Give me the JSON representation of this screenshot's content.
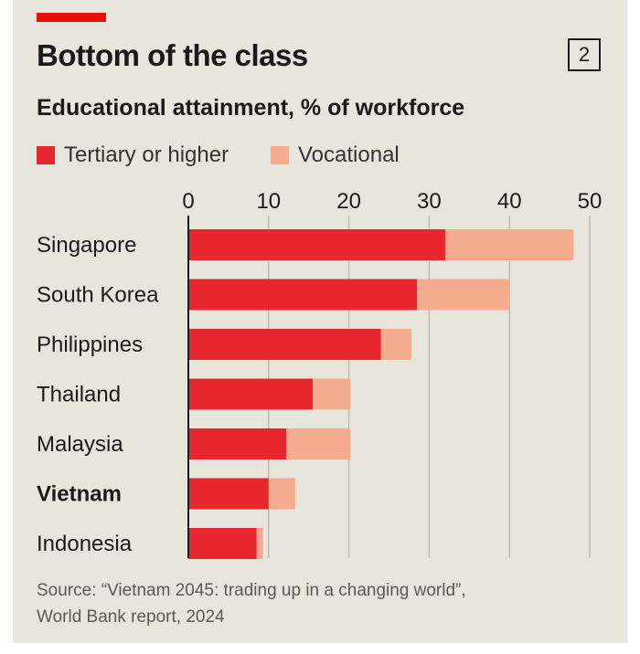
{
  "header": {
    "title": "Bottom of the class",
    "subtitle": "Educational attainment, % of workforce",
    "chart_number": "2"
  },
  "footer": {
    "source_line1": "Source: “Vietnam 2045: trading up in a changing world”,",
    "source_line2": "World Bank report, 2024"
  },
  "colors": {
    "panel_background": "#e8e6dc",
    "accent": "#e3120b",
    "tertiary": "#e8262d",
    "vocational": "#f5ab8e",
    "gridline": "#bdbbb3",
    "axis": "#1a1a1a"
  },
  "chart_data": {
    "type": "bar",
    "orientation": "horizontal",
    "stacked": true,
    "title": "Bottom of the class",
    "subtitle": "Educational attainment, % of workforce",
    "categories": [
      "Singapore",
      "South Korea",
      "Philippines",
      "Thailand",
      "Malaysia",
      "Vietnam",
      "Indonesia"
    ],
    "highlighted_category": "Vietnam",
    "series": [
      {
        "name": "Tertiary or higher",
        "color": "#e8262d",
        "values": [
          32,
          28.5,
          24,
          15.5,
          12.2,
          10,
          8.5
        ]
      },
      {
        "name": "Vocational",
        "color": "#f5ab8e",
        "values": [
          16,
          11.5,
          3.8,
          4.7,
          8,
          3.3,
          0.8
        ]
      }
    ],
    "xlim": [
      0,
      50
    ],
    "xticks": [
      "0",
      "10",
      "20",
      "30",
      "40",
      "50"
    ],
    "xlabel": "",
    "ylabel": "",
    "grid": true,
    "legend_position": "top-left"
  }
}
